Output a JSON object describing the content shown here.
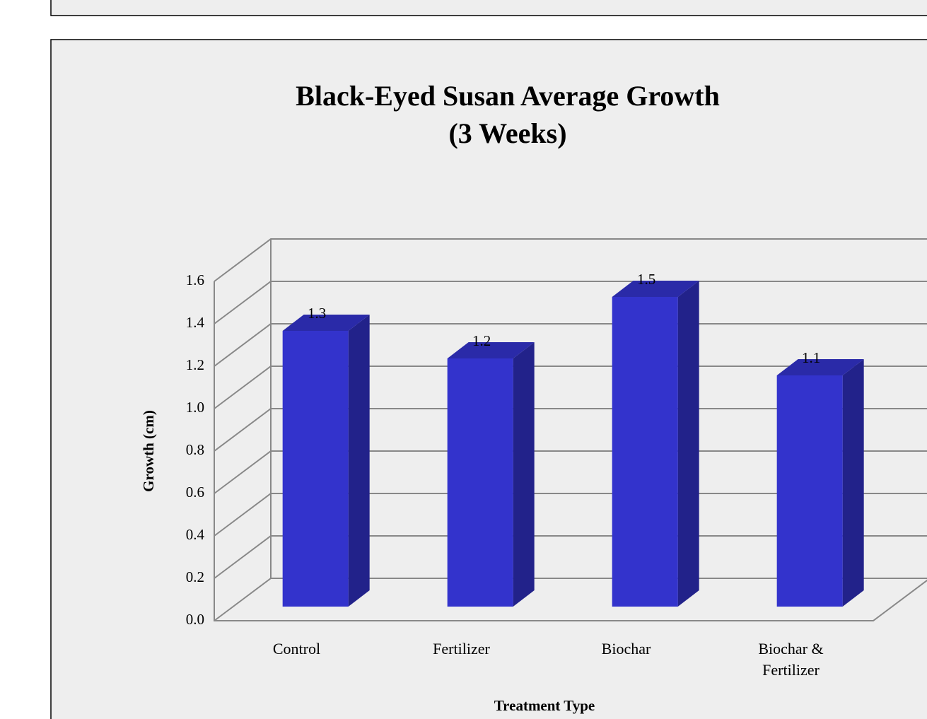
{
  "chart_data": {
    "type": "bar3d",
    "title": "Black-Eyed Susan Average Growth",
    "subtitle": "(3 Weeks)",
    "categories": [
      "Control",
      "Fertilizer",
      "Biochar",
      "Biochar & Fertilizer"
    ],
    "values": [
      1.3,
      1.17,
      1.46,
      1.09
    ],
    "value_labels": [
      "1.3",
      "1.2",
      "1.5",
      "1.1"
    ],
    "color": "#3333cc",
    "ylim": [
      0,
      1.6
    ],
    "yticks": [
      {
        "value": 0,
        "label": "0.0"
      },
      0.2,
      0.4,
      0.6,
      0.8,
      {
        "value": 1,
        "label": "1.0"
      },
      1.2,
      1.4,
      1.6
    ],
    "y_label": "Growth (cm)",
    "x_label": "Treatment Type",
    "grid": true
  }
}
